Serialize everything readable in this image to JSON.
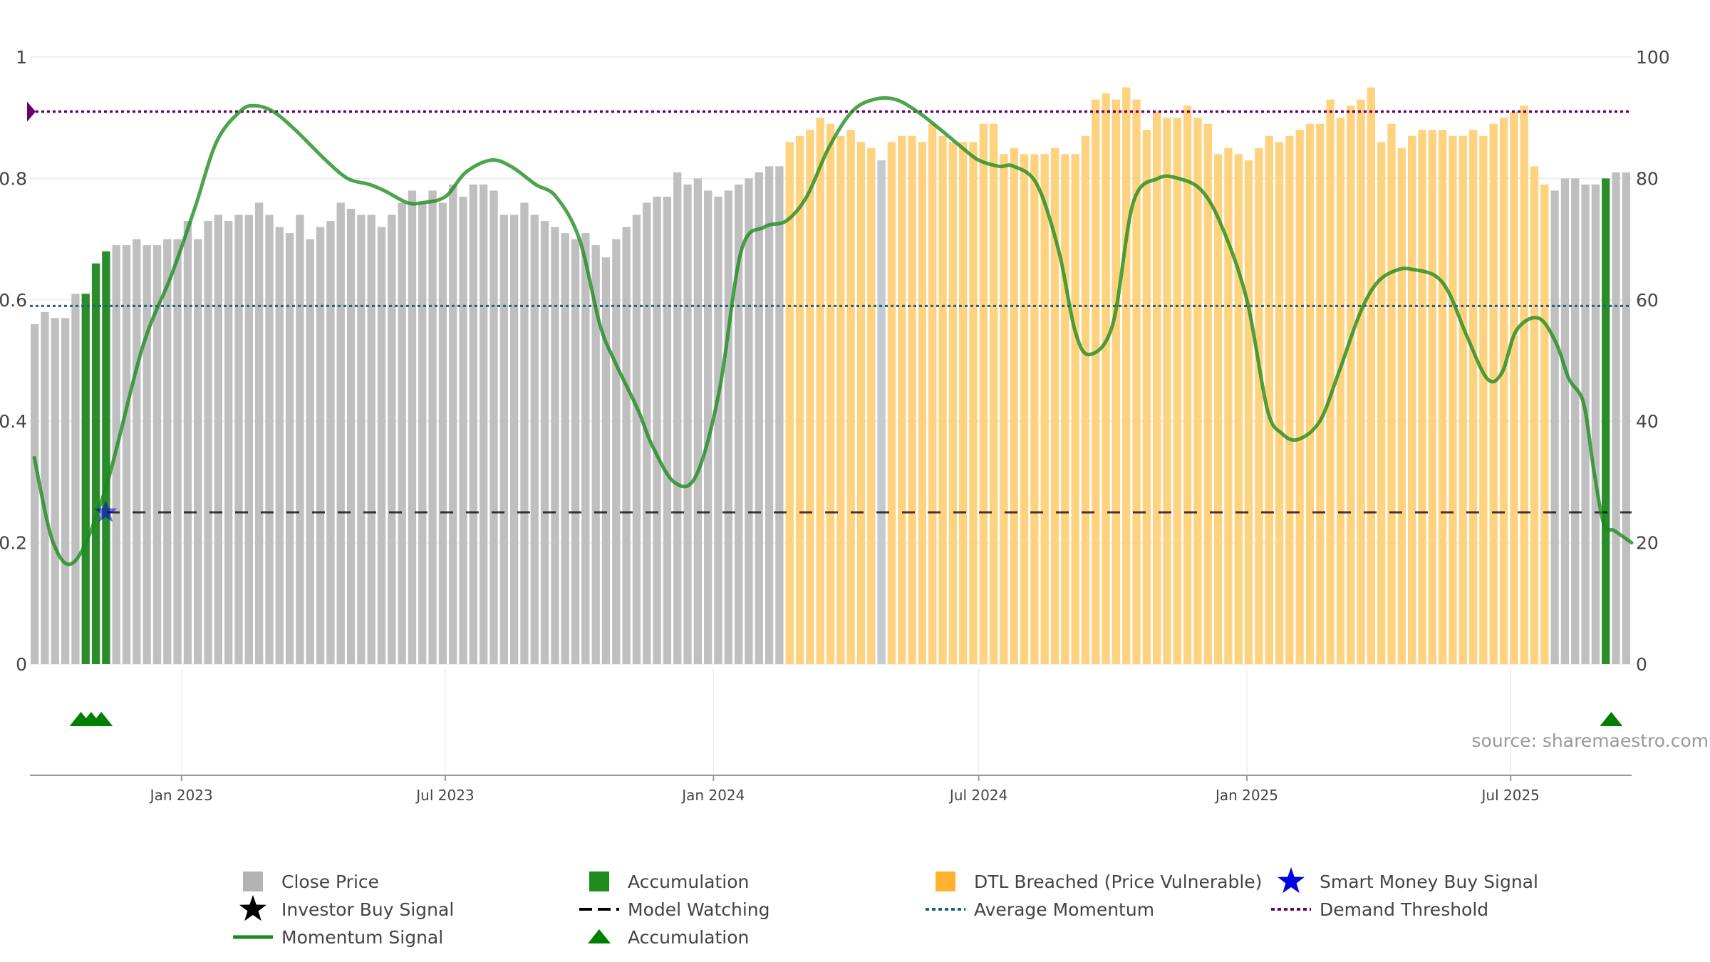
{
  "chart_data": {
    "type": "bar",
    "source_text": "source: sharemaestro.com",
    "left_axis": {
      "ylim": [
        0,
        1
      ],
      "ticks": [
        "0",
        "0.2",
        "0.4",
        "0.6",
        "0.8",
        "1"
      ]
    },
    "right_axis": {
      "ylim": [
        0,
        100
      ],
      "ticks": [
        "0",
        "20",
        "40",
        "60",
        "80",
        "100"
      ]
    },
    "x_axis": {
      "start": "2022-09-19",
      "end": "2025-09-22",
      "ticks": [
        {
          "date": "2023-01-01",
          "label": "Jan 2023"
        },
        {
          "date": "2023-07-01",
          "label": "Jul 2023"
        },
        {
          "date": "2024-01-01",
          "label": "Jan 2024"
        },
        {
          "date": "2024-07-01",
          "label": "Jul 2024"
        },
        {
          "date": "2025-01-01",
          "label": "Jan 2025"
        },
        {
          "date": "2025-07-01",
          "label": "Jul 2025"
        }
      ]
    },
    "bar_period_days": 7,
    "bars": [
      0.56,
      0.58,
      0.57,
      0.57,
      0.61,
      0.61,
      0.66,
      0.68,
      0.69,
      0.69,
      0.7,
      0.69,
      0.69,
      0.7,
      0.7,
      0.73,
      0.7,
      0.73,
      0.74,
      0.73,
      0.74,
      0.74,
      0.76,
      0.74,
      0.72,
      0.71,
      0.74,
      0.7,
      0.72,
      0.73,
      0.76,
      0.75,
      0.74,
      0.74,
      0.72,
      0.74,
      0.76,
      0.78,
      0.76,
      0.78,
      0.76,
      0.79,
      0.77,
      0.79,
      0.79,
      0.78,
      0.74,
      0.74,
      0.76,
      0.74,
      0.73,
      0.72,
      0.71,
      0.7,
      0.71,
      0.69,
      0.67,
      0.7,
      0.72,
      0.74,
      0.76,
      0.77,
      0.77,
      0.81,
      0.79,
      0.8,
      0.78,
      0.77,
      0.78,
      0.79,
      0.8,
      0.81,
      0.82,
      0.82,
      0.86,
      0.87,
      0.88,
      0.9,
      0.89,
      0.87,
      0.88,
      0.86,
      0.85,
      0.83,
      0.86,
      0.87,
      0.87,
      0.86,
      0.89,
      0.87,
      0.86,
      0.86,
      0.86,
      0.89,
      0.89,
      0.84,
      0.85,
      0.84,
      0.84,
      0.84,
      0.85,
      0.84,
      0.84,
      0.87,
      0.93,
      0.94,
      0.93,
      0.95,
      0.93,
      0.88,
      0.91,
      0.9,
      0.9,
      0.92,
      0.9,
      0.89,
      0.84,
      0.85,
      0.84,
      0.83,
      0.85,
      0.87,
      0.86,
      0.87,
      0.88,
      0.89,
      0.89,
      0.93,
      0.9,
      0.92,
      0.93,
      0.95,
      0.86,
      0.89,
      0.85,
      0.87,
      0.88,
      0.88,
      0.88,
      0.87,
      0.87,
      0.88,
      0.87,
      0.89,
      0.9,
      0.91,
      0.92,
      0.82,
      0.79,
      0.78,
      0.8,
      0.8,
      0.79,
      0.79,
      0.8,
      0.81,
      0.81
    ],
    "bar_categories": {
      "accumulation": [
        5,
        6,
        7,
        154
      ],
      "dtl_breached_range": [
        74,
        148
      ],
      "dtl_breached_exceptions": [
        83
      ]
    },
    "momentum_signal": {
      "x": [
        "2022-09-22",
        "2022-10-05",
        "2022-10-20",
        "2022-11-10",
        "2022-12-05",
        "2022-12-25",
        "2023-01-10",
        "2023-01-25",
        "2023-02-10",
        "2023-02-20",
        "2023-03-05",
        "2023-03-20",
        "2023-04-10",
        "2023-04-25",
        "2023-05-10",
        "2023-05-20",
        "2023-06-05",
        "2023-06-15",
        "2023-07-01",
        "2023-07-15",
        "2023-08-01",
        "2023-08-15",
        "2023-09-01",
        "2023-09-15",
        "2023-10-01",
        "2023-10-15",
        "2023-10-25",
        "2023-11-10",
        "2023-11-20",
        "2023-12-05",
        "2023-12-20",
        "2024-01-05",
        "2024-01-20",
        "2024-02-05",
        "2024-02-20",
        "2024-03-05",
        "2024-03-20",
        "2024-04-05",
        "2024-04-20",
        "2024-05-05",
        "2024-05-20",
        "2024-06-05",
        "2024-06-20",
        "2024-07-01",
        "2024-07-15",
        "2024-07-25",
        "2024-08-10",
        "2024-08-25",
        "2024-09-05",
        "2024-09-15",
        "2024-10-01",
        "2024-10-15",
        "2024-11-01",
        "2024-11-15",
        "2024-12-01",
        "2024-12-15",
        "2025-01-01",
        "2025-01-15",
        "2025-01-25",
        "2025-02-05",
        "2025-02-20",
        "2025-03-05",
        "2025-03-20",
        "2025-04-01",
        "2025-04-15",
        "2025-04-25",
        "2025-05-10",
        "2025-05-20",
        "2025-06-01",
        "2025-06-15",
        "2025-06-25",
        "2025-07-05",
        "2025-07-20",
        "2025-08-01",
        "2025-08-10",
        "2025-08-20",
        "2025-08-27",
        "2025-09-03",
        "2025-09-10",
        "2025-09-22"
      ],
      "y": [
        34,
        20,
        17,
        29,
        52,
        64,
        75,
        86,
        91,
        92,
        91,
        88,
        83,
        80,
        79,
        78,
        76,
        76,
        77,
        81,
        83,
        82,
        79,
        77,
        70,
        56,
        50,
        42,
        36,
        30,
        31,
        45,
        68,
        72,
        73,
        77,
        85,
        91,
        93,
        93,
        91,
        88,
        85,
        83,
        82,
        82,
        79,
        68,
        55,
        51,
        56,
        76,
        80,
        80,
        78,
        72,
        60,
        42,
        38,
        37,
        40,
        48,
        58,
        63,
        65,
        65,
        64,
        61,
        54,
        47,
        48,
        55,
        57,
        53,
        47,
        43,
        32,
        23,
        22,
        20
      ],
      "unit": "right_axis"
    },
    "model_watching": 0.25,
    "average_momentum": 59,
    "demand_threshold": 91,
    "smart_money_buy_signals": [
      {
        "x": "2022-11-10",
        "y": 0.25
      }
    ],
    "accumulation_markers": [
      "2022-10-24",
      "2022-10-31",
      "2022-11-07",
      "2025-09-08"
    ],
    "colors": {
      "close_price": "#bfbfbf",
      "accumulation": "#2a8c2a",
      "dtl_breached": "#ffd27f",
      "momentum": "#1a8a1a",
      "model_watching": "#000000",
      "average_momentum": "#1f5f8b",
      "demand_threshold": "#6a006a",
      "smart_money": "#0000e0",
      "accumulation_marker": "#008000"
    },
    "legend": [
      {
        "label": "Close Price",
        "icon": "square",
        "color": "#b3b3b3"
      },
      {
        "label": "Accumulation",
        "icon": "square",
        "color": "#1e8c1e"
      },
      {
        "label": "DTL Breached (Price Vulnerable)",
        "icon": "square",
        "color": "#ffb22e"
      },
      {
        "label": "Smart Money Buy Signal",
        "icon": "star",
        "color": "#0000e0"
      },
      {
        "label": "Investor Buy Signal",
        "icon": "star",
        "color": "#000000"
      },
      {
        "label": "Model Watching",
        "icon": "dash",
        "color": "#000000"
      },
      {
        "label": "Average Momentum",
        "icon": "dot",
        "color": "#1f5f8b"
      },
      {
        "label": "Demand Threshold",
        "icon": "dot",
        "color": "#6a006a"
      },
      {
        "label": "Momentum Signal",
        "icon": "line",
        "color": "#1a8a1a"
      },
      {
        "label": "Accumulation",
        "icon": "triangle",
        "color": "#008000"
      }
    ]
  }
}
